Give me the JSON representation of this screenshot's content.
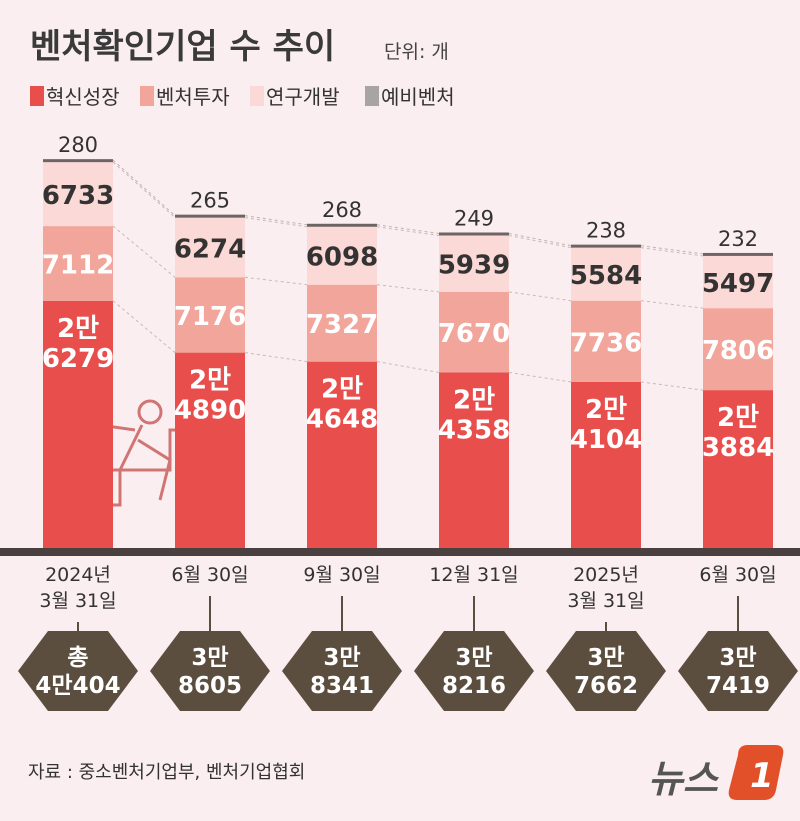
{
  "title": "벤처확인기업 수 추이",
  "unit": "단위: 개",
  "legend": [
    {
      "name": "혁신성장",
      "color": "#e84f4c"
    },
    {
      "name": "벤처투자",
      "color": "#f2a59b"
    },
    {
      "name": "연구개발",
      "color": "#fbd9d6"
    },
    {
      "name": "예비벤처",
      "color": "#a9a4a4"
    }
  ],
  "chart_data": {
    "type": "bar",
    "stacked": true,
    "categories": [
      "2024년 3월 31일",
      "6월 30일",
      "9월 30일",
      "12월 31일",
      "2025년 3월 31일",
      "6월 30일"
    ],
    "date_labels": [
      [
        "2024년",
        "3월 31일"
      ],
      [
        "6월 30일"
      ],
      [
        "9월 30일"
      ],
      [
        "12월 31일"
      ],
      [
        "2025년",
        "3월 31일"
      ],
      [
        "6월 30일"
      ]
    ],
    "series": [
      {
        "name": "혁신성장",
        "values": [
          26279,
          24890,
          24648,
          24358,
          24104,
          23884
        ],
        "labels": [
          [
            "2만",
            "6279"
          ],
          [
            "2만",
            "4890"
          ],
          [
            "2만",
            "4648"
          ],
          [
            "2만",
            "4358"
          ],
          [
            "2만",
            "4104"
          ],
          [
            "2만",
            "3884"
          ]
        ]
      },
      {
        "name": "벤처투자",
        "values": [
          7112,
          7176,
          7327,
          7670,
          7736,
          7806
        ],
        "labels": [
          "7112",
          "7176",
          "7327",
          "7670",
          "7736",
          "7806"
        ]
      },
      {
        "name": "연구개발",
        "values": [
          6733,
          6274,
          6098,
          5939,
          5584,
          5497
        ],
        "labels": [
          "6733",
          "6274",
          "6098",
          "5939",
          "5584",
          "5497"
        ]
      },
      {
        "name": "예비벤처",
        "values": [
          280,
          265,
          268,
          249,
          238,
          232
        ],
        "labels": [
          "280",
          "265",
          "268",
          "249",
          "238",
          "232"
        ]
      }
    ],
    "totals": [
      40404,
      38605,
      38341,
      38216,
      37662,
      37419
    ],
    "total_labels": [
      [
        "총",
        "4만404"
      ],
      [
        "3만",
        "8605"
      ],
      [
        "3만",
        "8341"
      ],
      [
        "3만",
        "8216"
      ],
      [
        "3만",
        "7662"
      ],
      [
        "3만",
        "7419"
      ]
    ]
  },
  "source": "자료 : 중소벤처기업부, 벤처기업협회",
  "logo": {
    "text": "뉴스",
    "mark": "1"
  }
}
